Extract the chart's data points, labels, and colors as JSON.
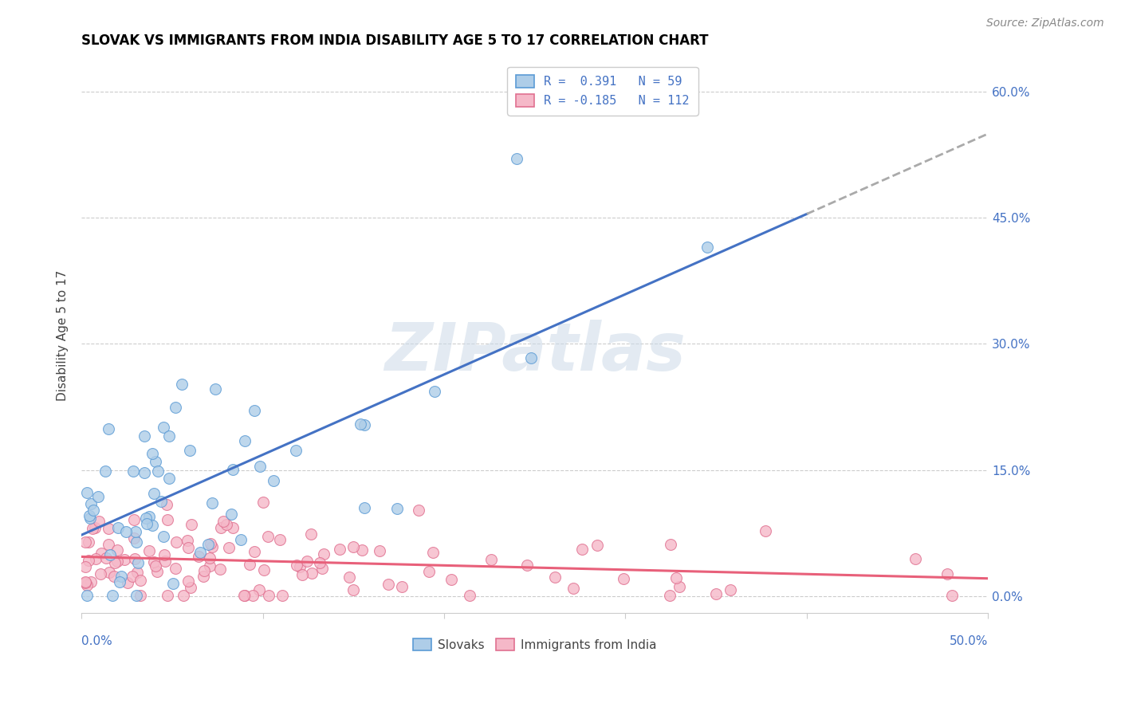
{
  "title": "SLOVAK VS IMMIGRANTS FROM INDIA DISABILITY AGE 5 TO 17 CORRELATION CHART",
  "source": "Source: ZipAtlas.com",
  "ylabel": "Disability Age 5 to 17",
  "ytick_values": [
    0.0,
    0.15,
    0.3,
    0.45,
    0.6
  ],
  "ytick_labels": [
    "0.0%",
    "15.0%",
    "30.0%",
    "45.0%",
    "60.0%"
  ],
  "xlim": [
    0.0,
    0.5
  ],
  "ylim": [
    -0.02,
    0.64
  ],
  "watermark_text": "ZIPatlas",
  "slovak_R": 0.391,
  "slovak_N": 59,
  "india_R": -0.185,
  "india_N": 112,
  "slovak_face_color": "#aecde8",
  "slovak_edge_color": "#5b9bd5",
  "india_face_color": "#f5b8c8",
  "india_edge_color": "#e07090",
  "slovak_line_color": "#4472c4",
  "india_line_color": "#e8607a",
  "dashed_line_color": "#aaaaaa",
  "grid_color": "#cccccc",
  "bottom_spine_color": "#cccccc",
  "right_tick_color": "#4472c4",
  "title_fontsize": 12,
  "source_fontsize": 10,
  "tick_fontsize": 11,
  "ylabel_fontsize": 11
}
